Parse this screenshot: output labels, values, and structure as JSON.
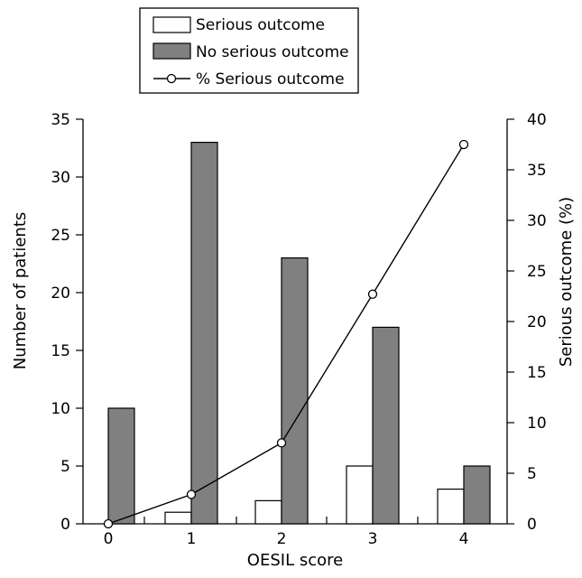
{
  "chart_data": {
    "type": "bar",
    "categories": [
      "0",
      "1",
      "2",
      "3",
      "4"
    ],
    "xlabel": "OESIL score",
    "ylabel": "Number of patients",
    "y2label": "Serious outcome  (%)",
    "ylim": [
      0,
      35
    ],
    "y2lim": [
      0,
      40
    ],
    "yticks": [
      0,
      5,
      10,
      15,
      20,
      25,
      30,
      35
    ],
    "y2ticks": [
      0,
      5,
      10,
      15,
      20,
      25,
      30,
      35,
      40
    ],
    "grid": false,
    "legend_position": "top-center",
    "series": [
      {
        "name": "Serious outcome",
        "type": "bar",
        "axis": "left",
        "values": [
          0,
          1,
          2,
          5,
          3
        ],
        "color": "#ffffff"
      },
      {
        "name": "No serious outcome",
        "type": "bar",
        "axis": "left",
        "values": [
          10,
          33,
          23,
          17,
          5
        ],
        "color": "#808080"
      },
      {
        "name": "% Serious outcome",
        "type": "line",
        "axis": "right",
        "marker": "open-circle",
        "values": [
          0,
          2.9,
          8,
          22.7,
          37.5
        ],
        "color": "#000000"
      }
    ]
  }
}
